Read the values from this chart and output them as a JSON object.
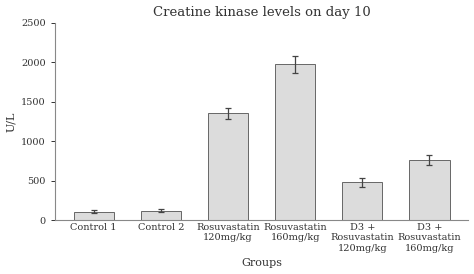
{
  "title": "Creatine kinase levels on day 10",
  "xlabel": "Groups",
  "ylabel": "U/L",
  "categories": [
    "Control 1",
    "Control 2",
    "Rosuvastatin\n120mg/kg",
    "Rosuvastatin\n160mg/kg",
    "D3 +\nRosuvastatin\n120mg/kg",
    "D3 +\nRosuvastatin\n160mg/kg"
  ],
  "values": [
    110,
    120,
    1350,
    1970,
    480,
    760
  ],
  "errors": [
    20,
    20,
    70,
    110,
    60,
    65
  ],
  "bar_color": "#dcdcdc",
  "bar_edgecolor": "#666666",
  "ylim": [
    0,
    2500
  ],
  "yticks": [
    0,
    500,
    1000,
    1500,
    2000,
    2500
  ],
  "title_fontsize": 9.5,
  "axis_label_fontsize": 8,
  "tick_fontsize": 7,
  "bar_width": 0.6,
  "background_color": "#ffffff",
  "spine_color": "#888888"
}
